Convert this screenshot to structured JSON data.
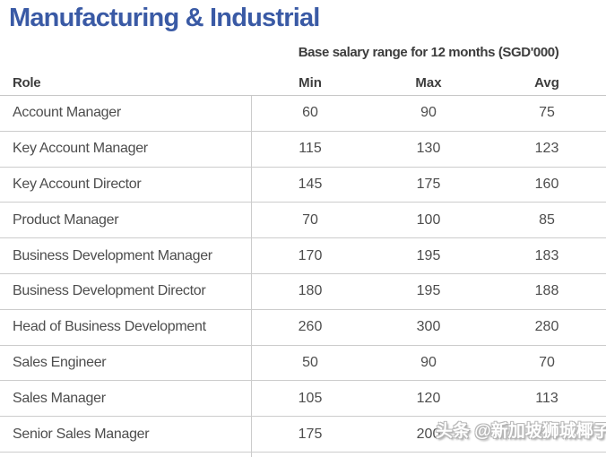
{
  "page": {
    "title": "Manufacturing & Industrial",
    "subtitle": "Base salary range for 12 months (SGD'000)"
  },
  "table": {
    "columns": [
      "Role",
      "Min",
      "Max",
      "Avg"
    ],
    "rows": [
      {
        "role": "Account Manager",
        "min": "60",
        "max": "90",
        "avg": "75"
      },
      {
        "role": "Key Account Manager",
        "min": "115",
        "max": "130",
        "avg": "123"
      },
      {
        "role": "Key Account Director",
        "min": "145",
        "max": "175",
        "avg": "160"
      },
      {
        "role": "Product Manager",
        "min": "70",
        "max": "100",
        "avg": "85"
      },
      {
        "role": "Business Development Manager",
        "min": "170",
        "max": "195",
        "avg": "183"
      },
      {
        "role": "Business Development Director",
        "min": "180",
        "max": "195",
        "avg": "188"
      },
      {
        "role": "Head of Business Development",
        "min": "260",
        "max": "300",
        "avg": "280"
      },
      {
        "role": "Sales Engineer",
        "min": "50",
        "max": "90",
        "avg": "70"
      },
      {
        "role": "Sales Manager",
        "min": "105",
        "max": "120",
        "avg": "113"
      },
      {
        "role": "Senior Sales Manager",
        "min": "175",
        "max": "200",
        "avg": ""
      }
    ]
  },
  "watermark": {
    "text": "头条 @新加坡狮城椰子"
  },
  "colors": {
    "title_blue": "#3a5aa5",
    "header_text": "#3d3d3d",
    "body_text": "#4d4d4d",
    "border": "#cccccc",
    "watermark_fill": "#ffffff",
    "watermark_outline": "#b8b8b8"
  }
}
